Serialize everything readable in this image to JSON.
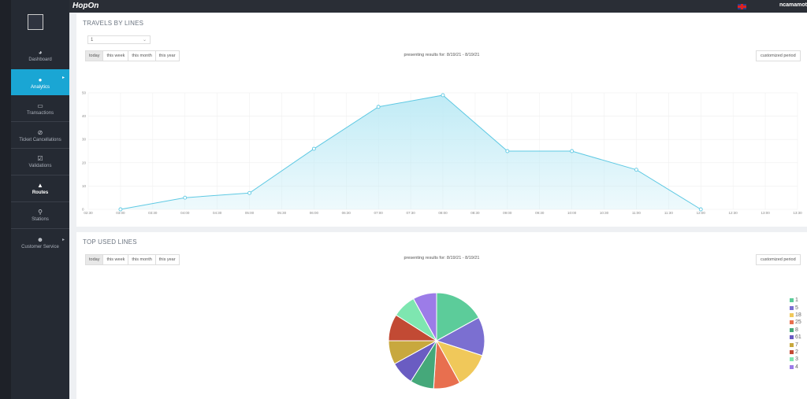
{
  "app": {
    "brand": "HopOn",
    "username": "ncamamot"
  },
  "sidebar": {
    "items": [
      {
        "label": "Dashboard",
        "icon": "dashboard-gauge-icon"
      },
      {
        "label": "Analytics",
        "icon": "info-circle-icon"
      },
      {
        "label": "Transactions",
        "icon": "card-icon"
      },
      {
        "label": "Ticket Cancellations",
        "icon": "cancel-circle-icon"
      },
      {
        "label": "Validations",
        "icon": "check-square-icon"
      },
      {
        "label": "Routes",
        "icon": "road-icon"
      },
      {
        "label": "Stations",
        "icon": "map-pin-icon"
      },
      {
        "label": "Customer Service",
        "icon": "users-icon"
      }
    ]
  },
  "travels": {
    "title": "TRAVELS BY LINES",
    "selected_line": "1",
    "periods": [
      "today",
      "this week",
      "this month",
      "this year"
    ],
    "presenting": "presenting results for: 8/19/21 - 8/19/21",
    "custom_period": "customized period"
  },
  "top_used": {
    "title": "TOP USED LINES",
    "periods": [
      "today",
      "this week",
      "this month",
      "this year"
    ],
    "presenting": "presenting results for: 8/19/21 - 8/19/21",
    "custom_period": "customized period"
  },
  "chart_data": [
    {
      "type": "area",
      "x": [
        "02:00",
        "03:00",
        "04:00",
        "05:00",
        "06:00",
        "07:00",
        "08:00",
        "09:00",
        "10:00",
        "11:00",
        "12:00",
        "13:00"
      ],
      "y": [
        0,
        0,
        5,
        7,
        26,
        44,
        49,
        25,
        25,
        17,
        0,
        null
      ],
      "x_ticks": [
        "02:30",
        "03:00",
        "03:30",
        "04:00",
        "04:30",
        "05:00",
        "05:30",
        "06:00",
        "06:30",
        "07:00",
        "07:30",
        "08:00",
        "08:30",
        "09:00",
        "09:30",
        "10:00",
        "10:30",
        "11:00",
        "11:30",
        "12:00",
        "12:30",
        "13:00",
        "13:30"
      ],
      "y_ticks": [
        0,
        10,
        20,
        30,
        40,
        50
      ],
      "ylim": [
        0,
        50
      ],
      "color": "#5fc9e3",
      "fill": "#bdeaf5",
      "grid": true
    },
    {
      "type": "pie",
      "labels": [
        "1",
        "5",
        "18",
        "25",
        "8",
        "61",
        "7",
        "2",
        "3",
        "4"
      ],
      "values": [
        17,
        13,
        12,
        9,
        8,
        8,
        8,
        9,
        8,
        8
      ],
      "colors": [
        "#5ccc9a",
        "#7b6fd1",
        "#f0c85a",
        "#e86f4f",
        "#45a87a",
        "#6a5cc2",
        "#c8a83e",
        "#c24a34",
        "#7ee6b0",
        "#9c7ce8"
      ]
    }
  ]
}
